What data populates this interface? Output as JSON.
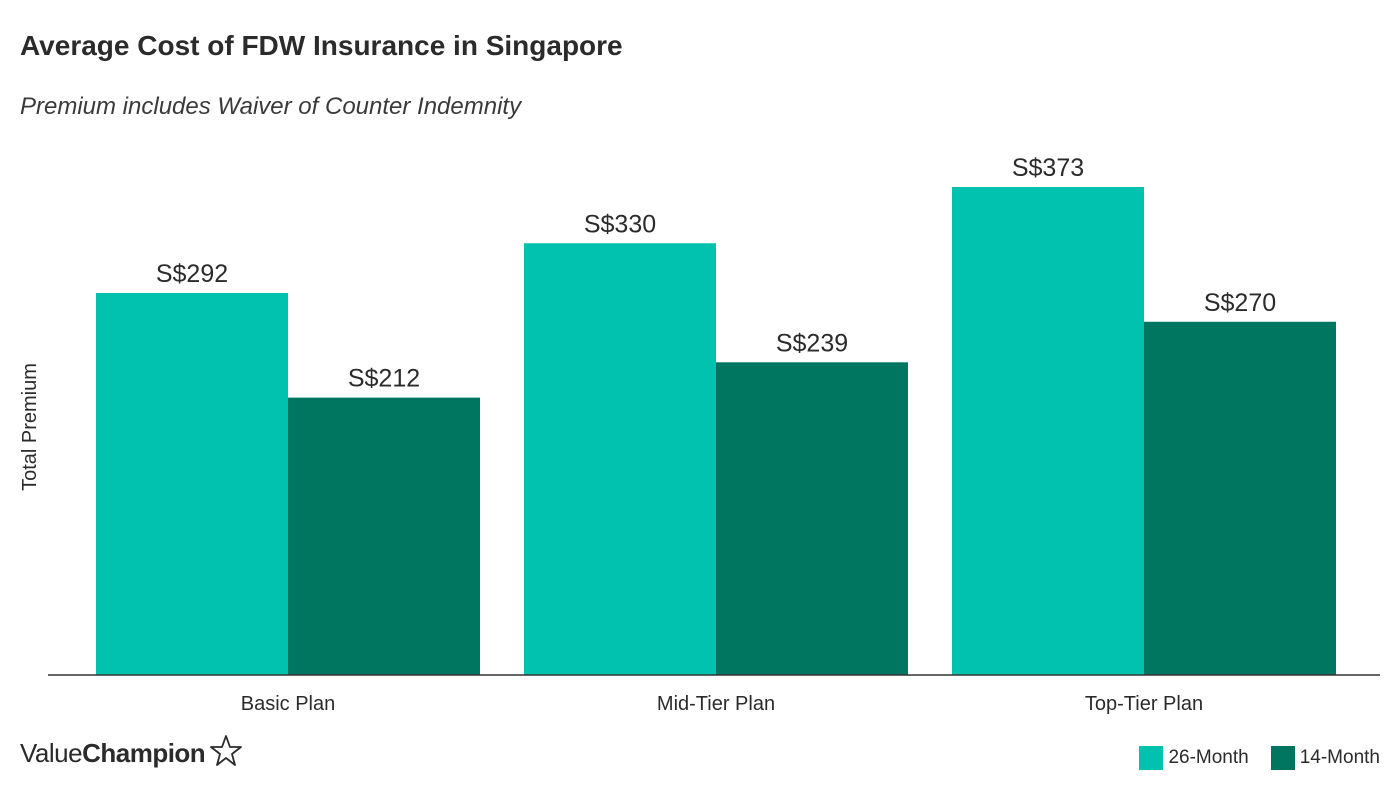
{
  "title": "Average Cost of FDW Insurance in Singapore",
  "subtitle": "Premium includes Waiver of Counter Indemnity",
  "brand": {
    "name_part1": "Value",
    "name_part2": "Champion",
    "icon": "star-outline-icon"
  },
  "colors": {
    "series_26": "#00c2ae",
    "series_14": "#007560",
    "axis": "#333333",
    "text": "#2b2b2b"
  },
  "chart_data": {
    "type": "bar",
    "title": "Average Cost of FDW Insurance in Singapore",
    "subtitle": "Premium includes Waiver of Counter Indemnity",
    "xlabel": "",
    "ylabel": "Total Premium",
    "categories": [
      "Basic Plan",
      "Mid-Tier Plan",
      "Top-Tier Plan"
    ],
    "series": [
      {
        "name": "26-Month",
        "values": [
          292,
          330,
          373
        ],
        "labels": [
          "S$292",
          "S$330",
          "S$373"
        ],
        "color": "#00c2ae"
      },
      {
        "name": "14-Month",
        "values": [
          212,
          239,
          270
        ],
        "labels": [
          "S$212",
          "S$239",
          "S$270"
        ],
        "color": "#007560"
      }
    ],
    "ylim": [
      0,
      420
    ],
    "grid": false,
    "legend_position": "bottom-right"
  }
}
